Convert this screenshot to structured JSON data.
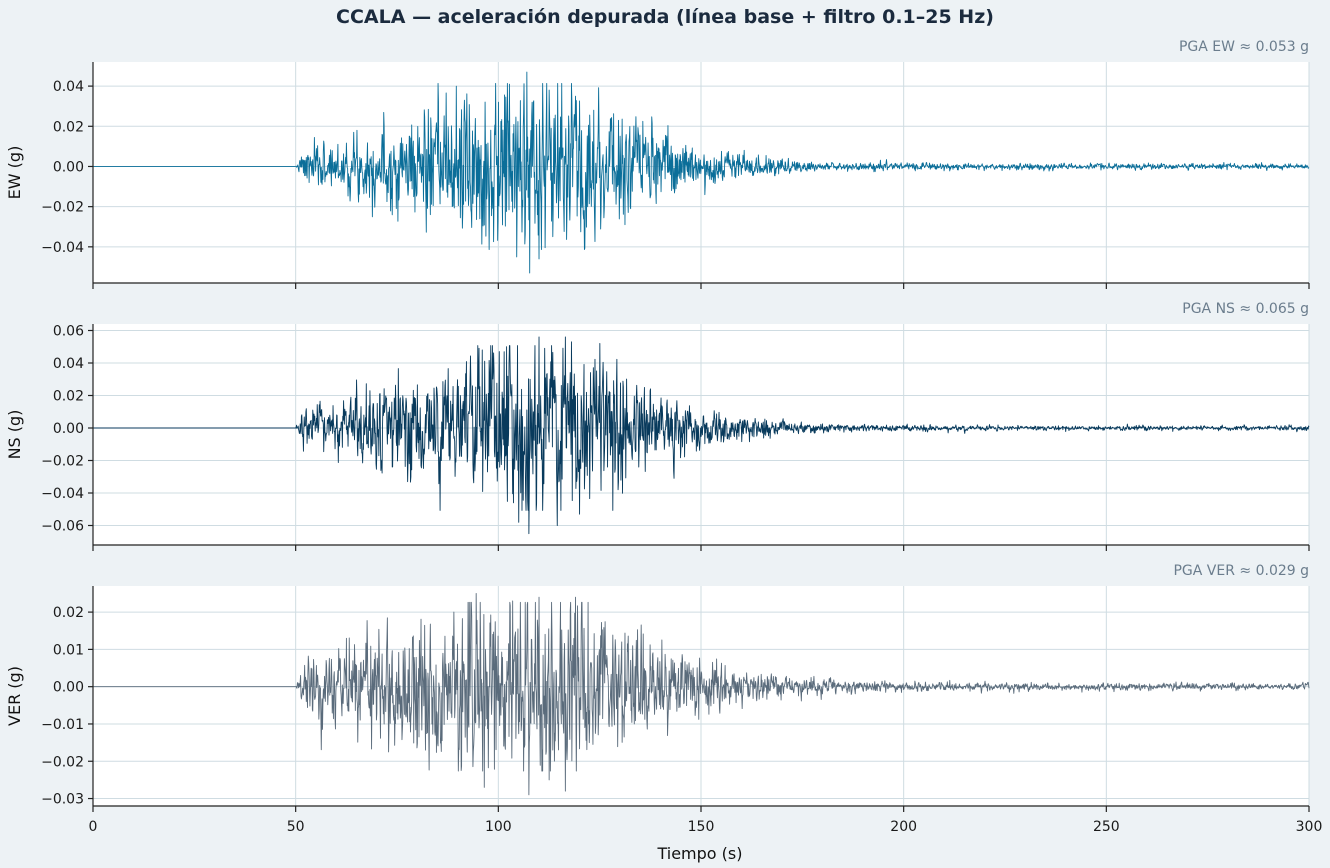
{
  "chart_data": {
    "type": "line",
    "title": "CCALA — aceleración depurada (línea base + filtro 0.1–25 Hz)",
    "xlabel": "Tiempo (s)",
    "xlim": [
      0,
      300
    ],
    "xticks": [
      "0",
      "50",
      "100",
      "150",
      "200",
      "250",
      "300"
    ],
    "sampling": {
      "t_start": 0,
      "t_end": 300,
      "n_points": 3000
    },
    "panels": [
      {
        "name": "EW",
        "ylabel": "EW (g)",
        "color": "#0b6e99",
        "pga_label": "PGA EW ≈ 0.053 g",
        "pga": 0.053,
        "ylim": [
          -0.058,
          0.052
        ],
        "yticks": [
          -0.04,
          -0.02,
          0.0,
          0.02,
          0.04
        ],
        "ytick_labels": [
          "−0.04",
          "−0.02",
          "0.00",
          "0.02",
          "0.04"
        ],
        "envelope": {
          "onset": 50,
          "peak_time": 107,
          "rise_width": 25,
          "decay_width": 24,
          "tail_amp": 0.003,
          "tail_tau": 40,
          "noise_level": 0.002
        },
        "peaks": [
          [
            107.0,
            0.047
          ],
          [
            107.7,
            -0.053
          ],
          [
            104.5,
            -0.045
          ],
          [
            110.0,
            -0.046
          ],
          [
            112.5,
            0.038
          ],
          [
            100.0,
            0.032
          ],
          [
            119.0,
            0.035
          ],
          [
            123.5,
            0.028
          ]
        ],
        "seed": 7
      },
      {
        "name": "NS",
        "ylabel": "NS (g)",
        "color": "#083a5c",
        "pga_label": "PGA NS ≈ 0.065 g",
        "pga": 0.065,
        "ylim": [
          -0.072,
          0.064
        ],
        "yticks": [
          -0.06,
          -0.04,
          -0.02,
          0.0,
          0.02,
          0.04,
          0.06
        ],
        "ytick_labels": [
          "−0.06",
          "−0.04",
          "−0.02",
          "0.00",
          "0.02",
          "0.04",
          "0.06"
        ],
        "envelope": {
          "onset": 50,
          "peak_time": 108,
          "rise_width": 28,
          "decay_width": 24,
          "tail_amp": 0.004,
          "tail_tau": 40,
          "noise_level": 0.002
        },
        "peaks": [
          [
            107.5,
            -0.065
          ],
          [
            110.0,
            0.056
          ],
          [
            116.5,
            0.056
          ],
          [
            102.0,
            0.05
          ],
          [
            96.0,
            0.048
          ],
          [
            114.5,
            -0.06
          ],
          [
            118.0,
            0.053
          ],
          [
            125.0,
            0.052
          ],
          [
            105.0,
            -0.058
          ],
          [
            120.0,
            -0.053
          ]
        ],
        "seed": 13
      },
      {
        "name": "VER",
        "ylabel": "VER (g)",
        "color": "#5a6b7b",
        "pga_label": "PGA VER ≈ 0.029 g",
        "pga": 0.029,
        "ylim": [
          -0.032,
          0.027
        ],
        "yticks": [
          -0.03,
          -0.02,
          -0.01,
          0.0,
          0.01,
          0.02
        ],
        "ytick_labels": [
          "−0.03",
          "−0.02",
          "−0.01",
          "0.00",
          "0.01",
          "0.02"
        ],
        "envelope": {
          "onset": 50,
          "peak_time": 108,
          "rise_width": 30,
          "decay_width": 25,
          "tail_amp": 0.0025,
          "tail_tau": 45,
          "noise_level": 0.0012
        },
        "peaks": [
          [
            107.5,
            -0.029
          ],
          [
            94.5,
            0.025
          ],
          [
            96.5,
            -0.027
          ],
          [
            116.5,
            -0.028
          ],
          [
            110.0,
            0.024
          ],
          [
            119.0,
            0.024
          ],
          [
            103.5,
            0.023
          ],
          [
            112.5,
            -0.025
          ]
        ],
        "seed": 29
      }
    ]
  }
}
